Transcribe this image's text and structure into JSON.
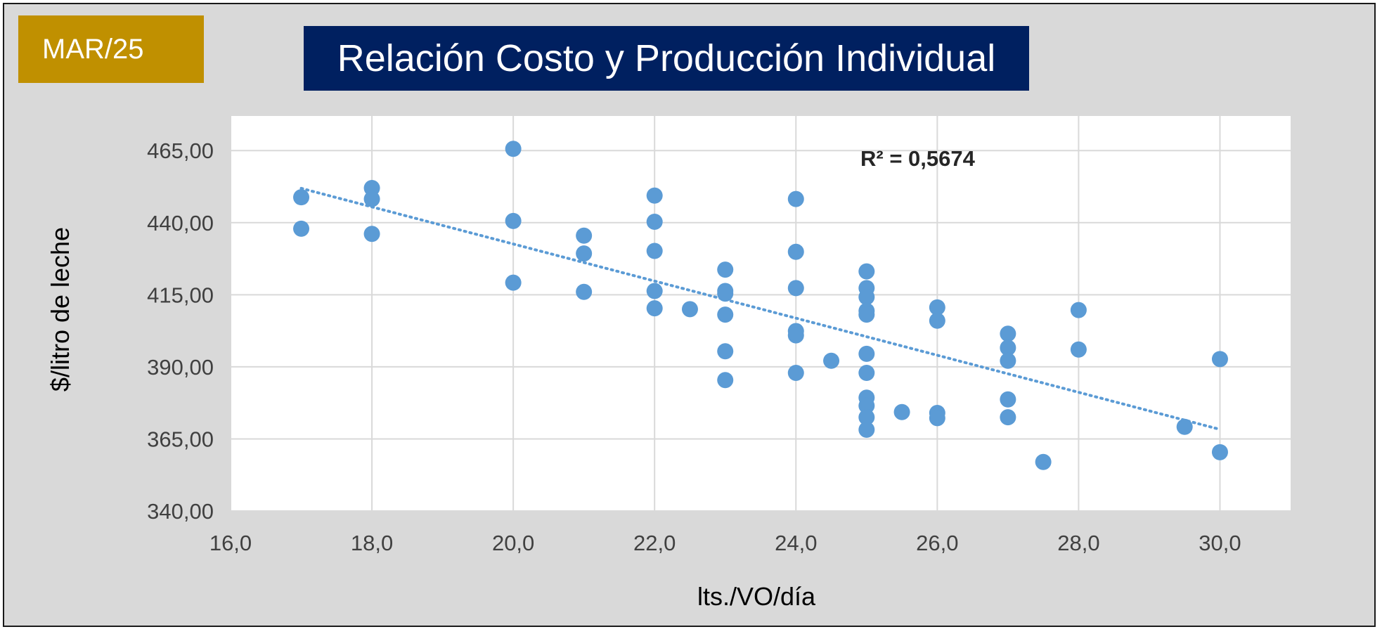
{
  "header": {
    "period": "MAR/25",
    "title": "Relación Costo y Producción Individual"
  },
  "colors": {
    "background": "#d9d9d9",
    "plot_area": "#ffffff",
    "badge": "#c09000",
    "title_bar": "#002060",
    "points": "#5b9bd5",
    "gridlines": "#d9d9d9"
  },
  "chart_data": {
    "type": "scatter",
    "xlabel": "lts./VO/día",
    "ylabel": "$/litro de leche",
    "xlim": [
      16,
      31
    ],
    "ylim": [
      340,
      477
    ],
    "x_ticks": [
      16,
      18,
      20,
      22,
      24,
      26,
      28,
      30
    ],
    "x_tick_labels": [
      "16,0",
      "18,0",
      "20,0",
      "22,0",
      "24,0",
      "26,0",
      "28,0",
      "30,0"
    ],
    "y_ticks": [
      340,
      365,
      390,
      415,
      440,
      465
    ],
    "y_tick_labels": [
      "340,00",
      "365,00",
      "390,00",
      "415,00",
      "440,00",
      "465,00"
    ],
    "grid": true,
    "legend": "none",
    "annotation": "R² = 0,5674",
    "trendline": {
      "style": "dotted linear",
      "x": [
        17,
        30
      ],
      "y": [
        451.9,
        368.3
      ]
    },
    "points": [
      {
        "x": 17,
        "y": 448.8
      },
      {
        "x": 17,
        "y": 437.9
      },
      {
        "x": 18,
        "y": 452.0
      },
      {
        "x": 18,
        "y": 448.2
      },
      {
        "x": 18,
        "y": 436.1
      },
      {
        "x": 20,
        "y": 465.6
      },
      {
        "x": 20,
        "y": 440.6
      },
      {
        "x": 20,
        "y": 419.2
      },
      {
        "x": 21,
        "y": 435.5
      },
      {
        "x": 21,
        "y": 429.3
      },
      {
        "x": 21,
        "y": 416.0
      },
      {
        "x": 22,
        "y": 449.4
      },
      {
        "x": 22,
        "y": 440.3
      },
      {
        "x": 22,
        "y": 430.2
      },
      {
        "x": 22,
        "y": 416.3
      },
      {
        "x": 22,
        "y": 410.3
      },
      {
        "x": 22.5,
        "y": 410.0
      },
      {
        "x": 23,
        "y": 423.7
      },
      {
        "x": 23,
        "y": 416.3
      },
      {
        "x": 23,
        "y": 415.4
      },
      {
        "x": 23,
        "y": 408.1
      },
      {
        "x": 23,
        "y": 395.4
      },
      {
        "x": 23,
        "y": 385.4
      },
      {
        "x": 24,
        "y": 448.2
      },
      {
        "x": 24,
        "y": 429.9
      },
      {
        "x": 24,
        "y": 417.3
      },
      {
        "x": 24,
        "y": 402.4
      },
      {
        "x": 24,
        "y": 400.9
      },
      {
        "x": 24,
        "y": 387.9
      },
      {
        "x": 24.5,
        "y": 392.1
      },
      {
        "x": 25,
        "y": 423.1
      },
      {
        "x": 25,
        "y": 417.3
      },
      {
        "x": 25,
        "y": 414.2
      },
      {
        "x": 25,
        "y": 409.4
      },
      {
        "x": 25,
        "y": 408.1
      },
      {
        "x": 25,
        "y": 394.5
      },
      {
        "x": 25,
        "y": 387.9
      },
      {
        "x": 25,
        "y": 379.3
      },
      {
        "x": 25,
        "y": 376.5
      },
      {
        "x": 25,
        "y": 372.5
      },
      {
        "x": 25,
        "y": 368.2
      },
      {
        "x": 25.5,
        "y": 374.3
      },
      {
        "x": 26,
        "y": 410.6
      },
      {
        "x": 26,
        "y": 406.0
      },
      {
        "x": 26,
        "y": 374.0
      },
      {
        "x": 26,
        "y": 372.2
      },
      {
        "x": 27,
        "y": 401.5
      },
      {
        "x": 27,
        "y": 396.6
      },
      {
        "x": 27,
        "y": 392.1
      },
      {
        "x": 27,
        "y": 378.7
      },
      {
        "x": 27,
        "y": 372.5
      },
      {
        "x": 27.5,
        "y": 357.0
      },
      {
        "x": 28,
        "y": 409.7
      },
      {
        "x": 28,
        "y": 396.0
      },
      {
        "x": 29.5,
        "y": 369.2
      },
      {
        "x": 30,
        "y": 392.7
      },
      {
        "x": 30,
        "y": 360.4
      }
    ]
  }
}
